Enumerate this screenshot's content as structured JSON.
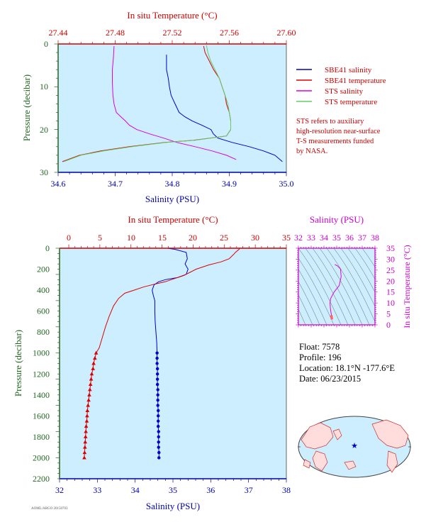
{
  "colors": {
    "plot_bg": "#cceeff",
    "sbe_salinity": "#0000cc",
    "sbe_temperature": "#dd0000",
    "sts_salinity": "#dd00dd",
    "sts_temperature": "#66cc66",
    "salinity_axis": "#0000aa",
    "temperature_axis": "#cc0000",
    "pressure_axis": "#226622",
    "ts_axis": "#cc00cc"
  },
  "info": {
    "float": "Float:  7578",
    "profile": "Profile:  196",
    "location": "Location:  18.1°N  -177.6°E",
    "date": "Date:  06/23/2015"
  },
  "sts_note": [
    "STS refers to auxiliary",
    "high-resolution near-surface",
    "T-S measurements funded",
    "by NASA."
  ],
  "footer_code": "AOML/ARGO 20150703",
  "chart_data": [
    {
      "type": "line",
      "title": "",
      "xlabel": "Salinity (PSU)",
      "x2label": "In situ Temperature (°C)",
      "ylabel": "Pressure (decibar)",
      "xlim": [
        34.6,
        35.0
      ],
      "x2lim": [
        27.44,
        27.6
      ],
      "ylim": [
        30,
        0
      ],
      "xticks": [
        "34.6",
        "34.7",
        "34.8",
        "34.9",
        "35.0"
      ],
      "x2ticks": [
        "27.44",
        "27.48",
        "27.52",
        "27.56",
        "27.60"
      ],
      "yticks": [
        "0",
        "10",
        "20",
        "30"
      ],
      "legend_position": "right",
      "series": [
        {
          "name": "SBE41 salinity",
          "axis": "salinity",
          "color": "#0000cc",
          "points": [
            [
              34.79,
              2.5
            ],
            [
              34.79,
              4
            ],
            [
              34.79,
              6
            ],
            [
              34.793,
              8
            ],
            [
              34.795,
              10
            ],
            [
              34.798,
              12
            ],
            [
              34.805,
              14
            ],
            [
              34.812,
              16
            ],
            [
              34.822,
              17
            ],
            [
              34.835,
              18
            ],
            [
              34.852,
              19
            ],
            [
              34.868,
              20
            ],
            [
              34.872,
              21
            ],
            [
              34.88,
              22
            ],
            [
              34.905,
              23
            ],
            [
              34.935,
              24
            ],
            [
              34.96,
              25
            ],
            [
              34.98,
              26
            ],
            [
              34.993,
              27.5
            ]
          ]
        },
        {
          "name": "SBE41 temperature",
          "axis": "temperature",
          "color": "#dd0000",
          "points": [
            [
              27.542,
              0.5
            ],
            [
              27.543,
              2
            ],
            [
              27.546,
              4
            ],
            [
              27.549,
              6
            ],
            [
              27.553,
              8
            ],
            [
              27.555,
              10
            ],
            [
              27.557,
              12
            ],
            [
              27.558,
              14
            ],
            [
              27.56,
              16
            ],
            [
              27.561,
              18
            ],
            [
              27.561,
              20
            ],
            [
              27.558,
              21.5
            ],
            [
              27.535,
              22.5
            ],
            [
              27.515,
              23
            ],
            [
              27.49,
              24
            ],
            [
              27.47,
              25
            ],
            [
              27.455,
              26
            ],
            [
              27.443,
              27.5
            ]
          ]
        },
        {
          "name": "STS salinity",
          "axis": "salinity",
          "color": "#dd00dd",
          "points": [
            [
              34.698,
              0.5
            ],
            [
              34.697,
              3
            ],
            [
              34.695,
              6
            ],
            [
              34.695,
              9
            ],
            [
              34.696,
              12
            ],
            [
              34.698,
              14
            ],
            [
              34.702,
              16
            ],
            [
              34.71,
              17
            ],
            [
              34.718,
              18
            ],
            [
              34.725,
              19
            ],
            [
              34.738,
              20
            ],
            [
              34.76,
              21
            ],
            [
              34.785,
              22
            ],
            [
              34.808,
              23
            ],
            [
              34.84,
              24
            ],
            [
              34.87,
              25
            ],
            [
              34.895,
              26
            ],
            [
              34.912,
              27
            ]
          ]
        },
        {
          "name": "STS temperature",
          "axis": "temperature",
          "color": "#66cc66",
          "points": [
            [
              27.544,
              0.3
            ],
            [
              27.545,
              2
            ],
            [
              27.547,
              4
            ],
            [
              27.55,
              6
            ],
            [
              27.553,
              8
            ],
            [
              27.555,
              10
            ],
            [
              27.557,
              12
            ],
            [
              27.559,
              14
            ],
            [
              27.56,
              16
            ],
            [
              27.561,
              18
            ],
            [
              27.561,
              20
            ],
            [
              27.558,
              21.5
            ],
            [
              27.536,
              22.5
            ],
            [
              27.516,
              23
            ],
            [
              27.492,
              24
            ],
            [
              27.472,
              25
            ],
            [
              27.456,
              26
            ],
            [
              27.444,
              27.5
            ]
          ]
        }
      ]
    },
    {
      "type": "line",
      "title": "",
      "xlabel": "Salinity (PSU)",
      "x2label": "In situ Temperature (°C)",
      "ylabel": "Pressure (decibar)",
      "xlim": [
        32,
        38
      ],
      "x2lim": [
        0,
        35
      ],
      "ylim": [
        2200,
        0
      ],
      "xticks": [
        "32",
        "33",
        "34",
        "35",
        "36",
        "37",
        "38"
      ],
      "x2ticks": [
        "0",
        "5",
        "10",
        "15",
        "20",
        "25",
        "30",
        "35"
      ],
      "yticks": [
        "0",
        "200",
        "400",
        "600",
        "800",
        "1000",
        "1200",
        "1400",
        "1600",
        "1800",
        "2000",
        "2200"
      ],
      "series": [
        {
          "axis": "salinity",
          "color": "#0000cc",
          "points": [
            [
              34.85,
              0
            ],
            [
              35.05,
              10
            ],
            [
              35.35,
              40
            ],
            [
              35.38,
              100
            ],
            [
              35.32,
              150
            ],
            [
              35.4,
              200
            ],
            [
              35.35,
              250
            ],
            [
              35.12,
              280
            ],
            [
              34.8,
              300
            ],
            [
              34.62,
              320
            ],
            [
              34.5,
              350
            ],
            [
              34.45,
              400
            ],
            [
              34.48,
              450
            ],
            [
              34.52,
              500
            ],
            [
              34.52,
              600
            ],
            [
              34.53,
              700
            ],
            [
              34.55,
              800
            ],
            [
              34.57,
              900
            ],
            [
              34.58,
              1000
            ]
          ],
          "markers": {
            "symbol": "circle",
            "points": [
              [
                34.58,
                1000
              ],
              [
                34.58,
                1050
              ],
              [
                34.58,
                1100
              ],
              [
                34.59,
                1150
              ],
              [
                34.59,
                1200
              ],
              [
                34.59,
                1250
              ],
              [
                34.59,
                1300
              ],
              [
                34.6,
                1350
              ],
              [
                34.6,
                1400
              ],
              [
                34.6,
                1450
              ],
              [
                34.6,
                1500
              ],
              [
                34.61,
                1550
              ],
              [
                34.61,
                1600
              ],
              [
                34.61,
                1650
              ],
              [
                34.61,
                1700
              ],
              [
                34.62,
                1750
              ],
              [
                34.62,
                1800
              ],
              [
                34.62,
                1850
              ],
              [
                34.62,
                1900
              ],
              [
                34.63,
                1950
              ],
              [
                34.63,
                2000
              ]
            ]
          }
        },
        {
          "axis": "temperature",
          "color": "#dd0000",
          "points": [
            [
              27.5,
              0
            ],
            [
              27.4,
              10
            ],
            [
              26.8,
              40
            ],
            [
              26.5,
              60
            ],
            [
              25.8,
              100
            ],
            [
              24.5,
              130
            ],
            [
              22.5,
              160
            ],
            [
              20.5,
              200
            ],
            [
              19.5,
              230
            ],
            [
              18.5,
              260
            ],
            [
              17.0,
              290
            ],
            [
              15.5,
              320
            ],
            [
              14.0,
              340
            ],
            [
              12.0,
              370
            ],
            [
              10.5,
              400
            ],
            [
              9.0,
              430
            ],
            [
              8.0,
              480
            ],
            [
              7.2,
              550
            ],
            [
              6.5,
              650
            ],
            [
              5.9,
              750
            ],
            [
              5.4,
              850
            ],
            [
              4.9,
              950
            ],
            [
              4.4,
              1000
            ]
          ],
          "markers": {
            "symbol": "triangle",
            "points": [
              [
                4.4,
                1000
              ],
              [
                4.2,
                1050
              ],
              [
                4.0,
                1100
              ],
              [
                3.9,
                1150
              ],
              [
                3.7,
                1200
              ],
              [
                3.6,
                1250
              ],
              [
                3.5,
                1300
              ],
              [
                3.4,
                1350
              ],
              [
                3.3,
                1400
              ],
              [
                3.2,
                1450
              ],
              [
                3.1,
                1500
              ],
              [
                3.0,
                1550
              ],
              [
                2.95,
                1600
              ],
              [
                2.9,
                1650
              ],
              [
                2.8,
                1700
              ],
              [
                2.75,
                1750
              ],
              [
                2.7,
                1800
              ],
              [
                2.65,
                1850
              ],
              [
                2.6,
                1900
              ],
              [
                2.55,
                1950
              ],
              [
                2.5,
                2000
              ]
            ]
          }
        }
      ]
    },
    {
      "type": "line",
      "title": "",
      "xlabel": "",
      "x2label": "Salinity (PSU)",
      "ylabel": "In situ Temperature (°C)",
      "x2lim": [
        32,
        38
      ],
      "ylim": [
        0,
        35
      ],
      "x2ticks": [
        "32",
        "33",
        "34",
        "35",
        "36",
        "37",
        "38"
      ],
      "yticks": [
        "0",
        "5",
        "10",
        "15",
        "20",
        "25",
        "30",
        "35"
      ],
      "series": [
        {
          "axis": "ts",
          "color": "#dd00dd",
          "points": [
            [
              34.85,
              27.5
            ],
            [
              35.05,
              27.0
            ],
            [
              35.3,
              25.5
            ],
            [
              35.35,
              22
            ],
            [
              35.2,
              18
            ],
            [
              34.8,
              15
            ],
            [
              34.52,
              12
            ],
            [
              34.48,
              10
            ],
            [
              34.5,
              8
            ],
            [
              34.53,
              6.5
            ],
            [
              34.57,
              5
            ],
            [
              34.6,
              3.5
            ],
            [
              34.63,
              2.5
            ]
          ]
        },
        {
          "axis": "ts",
          "color": "#ff6666",
          "style": "thick",
          "points": [
            [
              34.58,
              4.4
            ],
            [
              34.6,
              3.5
            ],
            [
              34.62,
              2.8
            ],
            [
              34.63,
              2.5
            ]
          ]
        }
      ]
    }
  ]
}
